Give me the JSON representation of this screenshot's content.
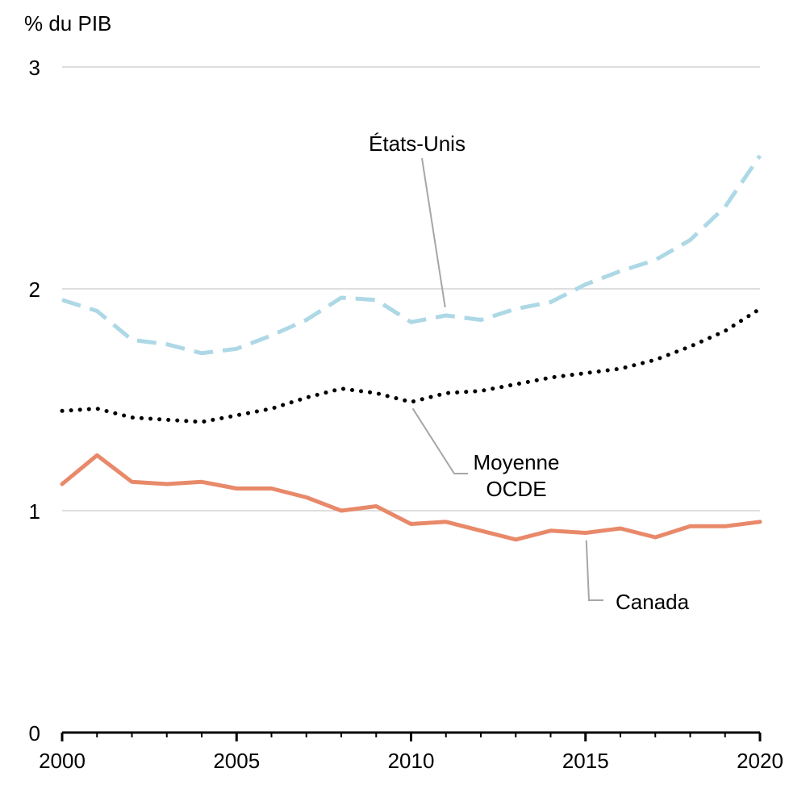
{
  "chart_data": {
    "type": "line",
    "title": "",
    "ylabel": "% du PIB",
    "xlabel": "",
    "ylim": [
      0,
      3
    ],
    "yticks": [
      0,
      1,
      2,
      3
    ],
    "xlim": [
      2000,
      2020
    ],
    "xticks": [
      2000,
      2005,
      2010,
      2015,
      2020
    ],
    "grid": true,
    "x": [
      2000,
      2001,
      2002,
      2003,
      2004,
      2005,
      2006,
      2007,
      2008,
      2009,
      2010,
      2011,
      2012,
      2013,
      2014,
      2015,
      2016,
      2017,
      2018,
      2019,
      2020
    ],
    "series": [
      {
        "name": "États-Unis",
        "style": "dashed",
        "color": "#add8e6",
        "values": [
          1.95,
          1.9,
          1.77,
          1.75,
          1.71,
          1.73,
          1.79,
          1.86,
          1.96,
          1.95,
          1.85,
          1.88,
          1.86,
          1.91,
          1.94,
          2.02,
          2.08,
          2.13,
          2.22,
          2.37,
          2.6
        ]
      },
      {
        "name": "Moyenne OCDE",
        "label_lines": [
          "Moyenne",
          "OCDE"
        ],
        "style": "dotted",
        "color": "#000000",
        "values": [
          1.45,
          1.46,
          1.42,
          1.41,
          1.4,
          1.43,
          1.46,
          1.51,
          1.55,
          1.53,
          1.49,
          1.53,
          1.54,
          1.57,
          1.6,
          1.62,
          1.64,
          1.68,
          1.74,
          1.81,
          1.91
        ]
      },
      {
        "name": "Canada",
        "style": "solid",
        "color": "#e8896a",
        "values": [
          1.12,
          1.25,
          1.13,
          1.12,
          1.13,
          1.1,
          1.1,
          1.06,
          1.0,
          1.02,
          0.94,
          0.95,
          0.91,
          0.87,
          0.91,
          0.9,
          0.92,
          0.88,
          0.93,
          0.93,
          0.95
        ]
      }
    ],
    "annotations": [
      {
        "series": "États-Unis",
        "text": "États-Unis",
        "anchor_x": 2011,
        "anchor_y": 1.88
      },
      {
        "series": "Moyenne OCDE",
        "text": "Moyenne OCDE",
        "anchor_x": 2010,
        "anchor_y": 1.49
      },
      {
        "series": "Canada",
        "text": "Canada",
        "anchor_x": 2015,
        "anchor_y": 0.88
      }
    ]
  }
}
